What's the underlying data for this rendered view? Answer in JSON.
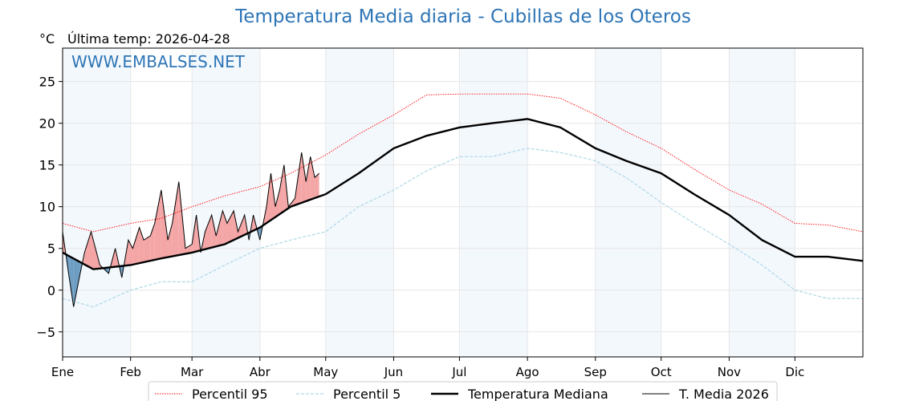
{
  "title": "Temperatura Media diaria - Cubillas de los Oteros",
  "unit_label": "°C",
  "last_temp_label": "Última temp: 2026-04-28",
  "watermark": "WWW.EMBALSES.NET",
  "chart_data": {
    "type": "line",
    "title": "Temperatura Media diaria - Cubillas de los Oteros",
    "ylabel": "°C",
    "ylim": [
      -8,
      29
    ],
    "xlim": [
      1,
      366
    ],
    "yticks": [
      -5,
      0,
      5,
      10,
      15,
      20,
      25
    ],
    "month_labels": [
      "Ene",
      "Feb",
      "Mar",
      "Abr",
      "May",
      "Jun",
      "Jul",
      "Ago",
      "Sep",
      "Oct",
      "Nov",
      "Dic"
    ],
    "month_start_days": [
      1,
      32,
      60,
      91,
      121,
      152,
      182,
      213,
      244,
      274,
      305,
      335
    ],
    "shaded_month_bands": [
      [
        1,
        32
      ],
      [
        60,
        91
      ],
      [
        121,
        152
      ],
      [
        182,
        213
      ],
      [
        244,
        274
      ],
      [
        305,
        335
      ]
    ],
    "grid": true,
    "legend_position": "bottom",
    "series": [
      {
        "name": "Percentil 95",
        "color": "#ff0000",
        "style": "dotted",
        "x": [
          1,
          15,
          32,
          46,
          60,
          75,
          91,
          105,
          121,
          136,
          152,
          167,
          182,
          197,
          213,
          228,
          244,
          258,
          274,
          289,
          305,
          320,
          335,
          350,
          366
        ],
        "values": [
          8.0,
          7.0,
          8.0,
          8.6,
          10.0,
          11.3,
          12.4,
          14.0,
          16.2,
          18.7,
          21.0,
          23.4,
          23.5,
          23.5,
          23.5,
          23.0,
          21.0,
          19.0,
          17.0,
          14.5,
          12.0,
          10.3,
          8.0,
          7.8,
          7.0
        ]
      },
      {
        "name": "Percentil 5",
        "color": "#add8e6",
        "style": "dashed",
        "x": [
          1,
          15,
          32,
          46,
          60,
          75,
          91,
          105,
          121,
          136,
          152,
          167,
          182,
          197,
          213,
          228,
          244,
          258,
          274,
          289,
          305,
          320,
          335,
          350,
          366
        ],
        "values": [
          -1.0,
          -2.0,
          0.0,
          1.0,
          1.0,
          3.0,
          5.0,
          6.0,
          7.0,
          10.0,
          12.0,
          14.3,
          16.0,
          16.0,
          17.0,
          16.5,
          15.5,
          13.5,
          10.5,
          8.0,
          5.5,
          3.0,
          0.0,
          -1.0,
          -1.0
        ]
      },
      {
        "name": "Temperatura Mediana",
        "color": "#000000",
        "style": "solid-thick",
        "x": [
          1,
          15,
          32,
          46,
          60,
          75,
          91,
          105,
          121,
          136,
          152,
          167,
          182,
          197,
          213,
          228,
          244,
          258,
          274,
          289,
          305,
          320,
          335,
          350,
          366
        ],
        "values": [
          4.5,
          2.5,
          3.0,
          3.8,
          4.5,
          5.5,
          7.5,
          10.0,
          11.5,
          14.0,
          17.0,
          18.5,
          19.5,
          20.0,
          20.5,
          19.5,
          17.0,
          15.5,
          14.0,
          11.5,
          9.0,
          6.0,
          4.0,
          4.0,
          3.5
        ]
      },
      {
        "name": "T. Media 2026",
        "color": "#000000",
        "style": "solid-thin",
        "x": [
          1,
          4,
          6,
          9,
          11,
          14,
          18,
          22,
          25,
          28,
          31,
          33,
          36,
          38,
          41,
          43,
          46,
          49,
          51,
          54,
          57,
          60,
          62,
          64,
          66,
          69,
          71,
          74,
          76,
          79,
          81,
          84,
          86,
          88,
          91,
          94,
          96,
          98,
          100,
          102,
          104,
          107,
          110,
          112,
          114,
          116,
          118
        ],
        "values": [
          7.0,
          1.5,
          -2.0,
          2.0,
          4.5,
          7.0,
          3.0,
          2.0,
          5.0,
          1.5,
          6.0,
          5.0,
          7.5,
          6.0,
          6.5,
          8.0,
          12.0,
          6.0,
          8.0,
          13.0,
          5.0,
          5.5,
          9.0,
          4.5,
          7.0,
          9.0,
          6.5,
          9.5,
          8.0,
          9.5,
          7.0,
          9.0,
          6.0,
          9.0,
          6.0,
          10.0,
          14.0,
          10.0,
          12.0,
          15.0,
          10.0,
          11.0,
          16.5,
          13.0,
          16.0,
          13.5,
          14.0
        ]
      }
    ]
  },
  "legend": {
    "items": [
      {
        "label": "Percentil 95"
      },
      {
        "label": "Percentil 5"
      },
      {
        "label": "Temperatura Mediana"
      },
      {
        "label": "T. Media 2026"
      }
    ]
  },
  "colors": {
    "title": "#2e75b6",
    "watermark": "#2e75b6",
    "above_fill": "#f4a6a6",
    "below_fill": "#6e9ec3",
    "band": "#f3f8fd"
  }
}
